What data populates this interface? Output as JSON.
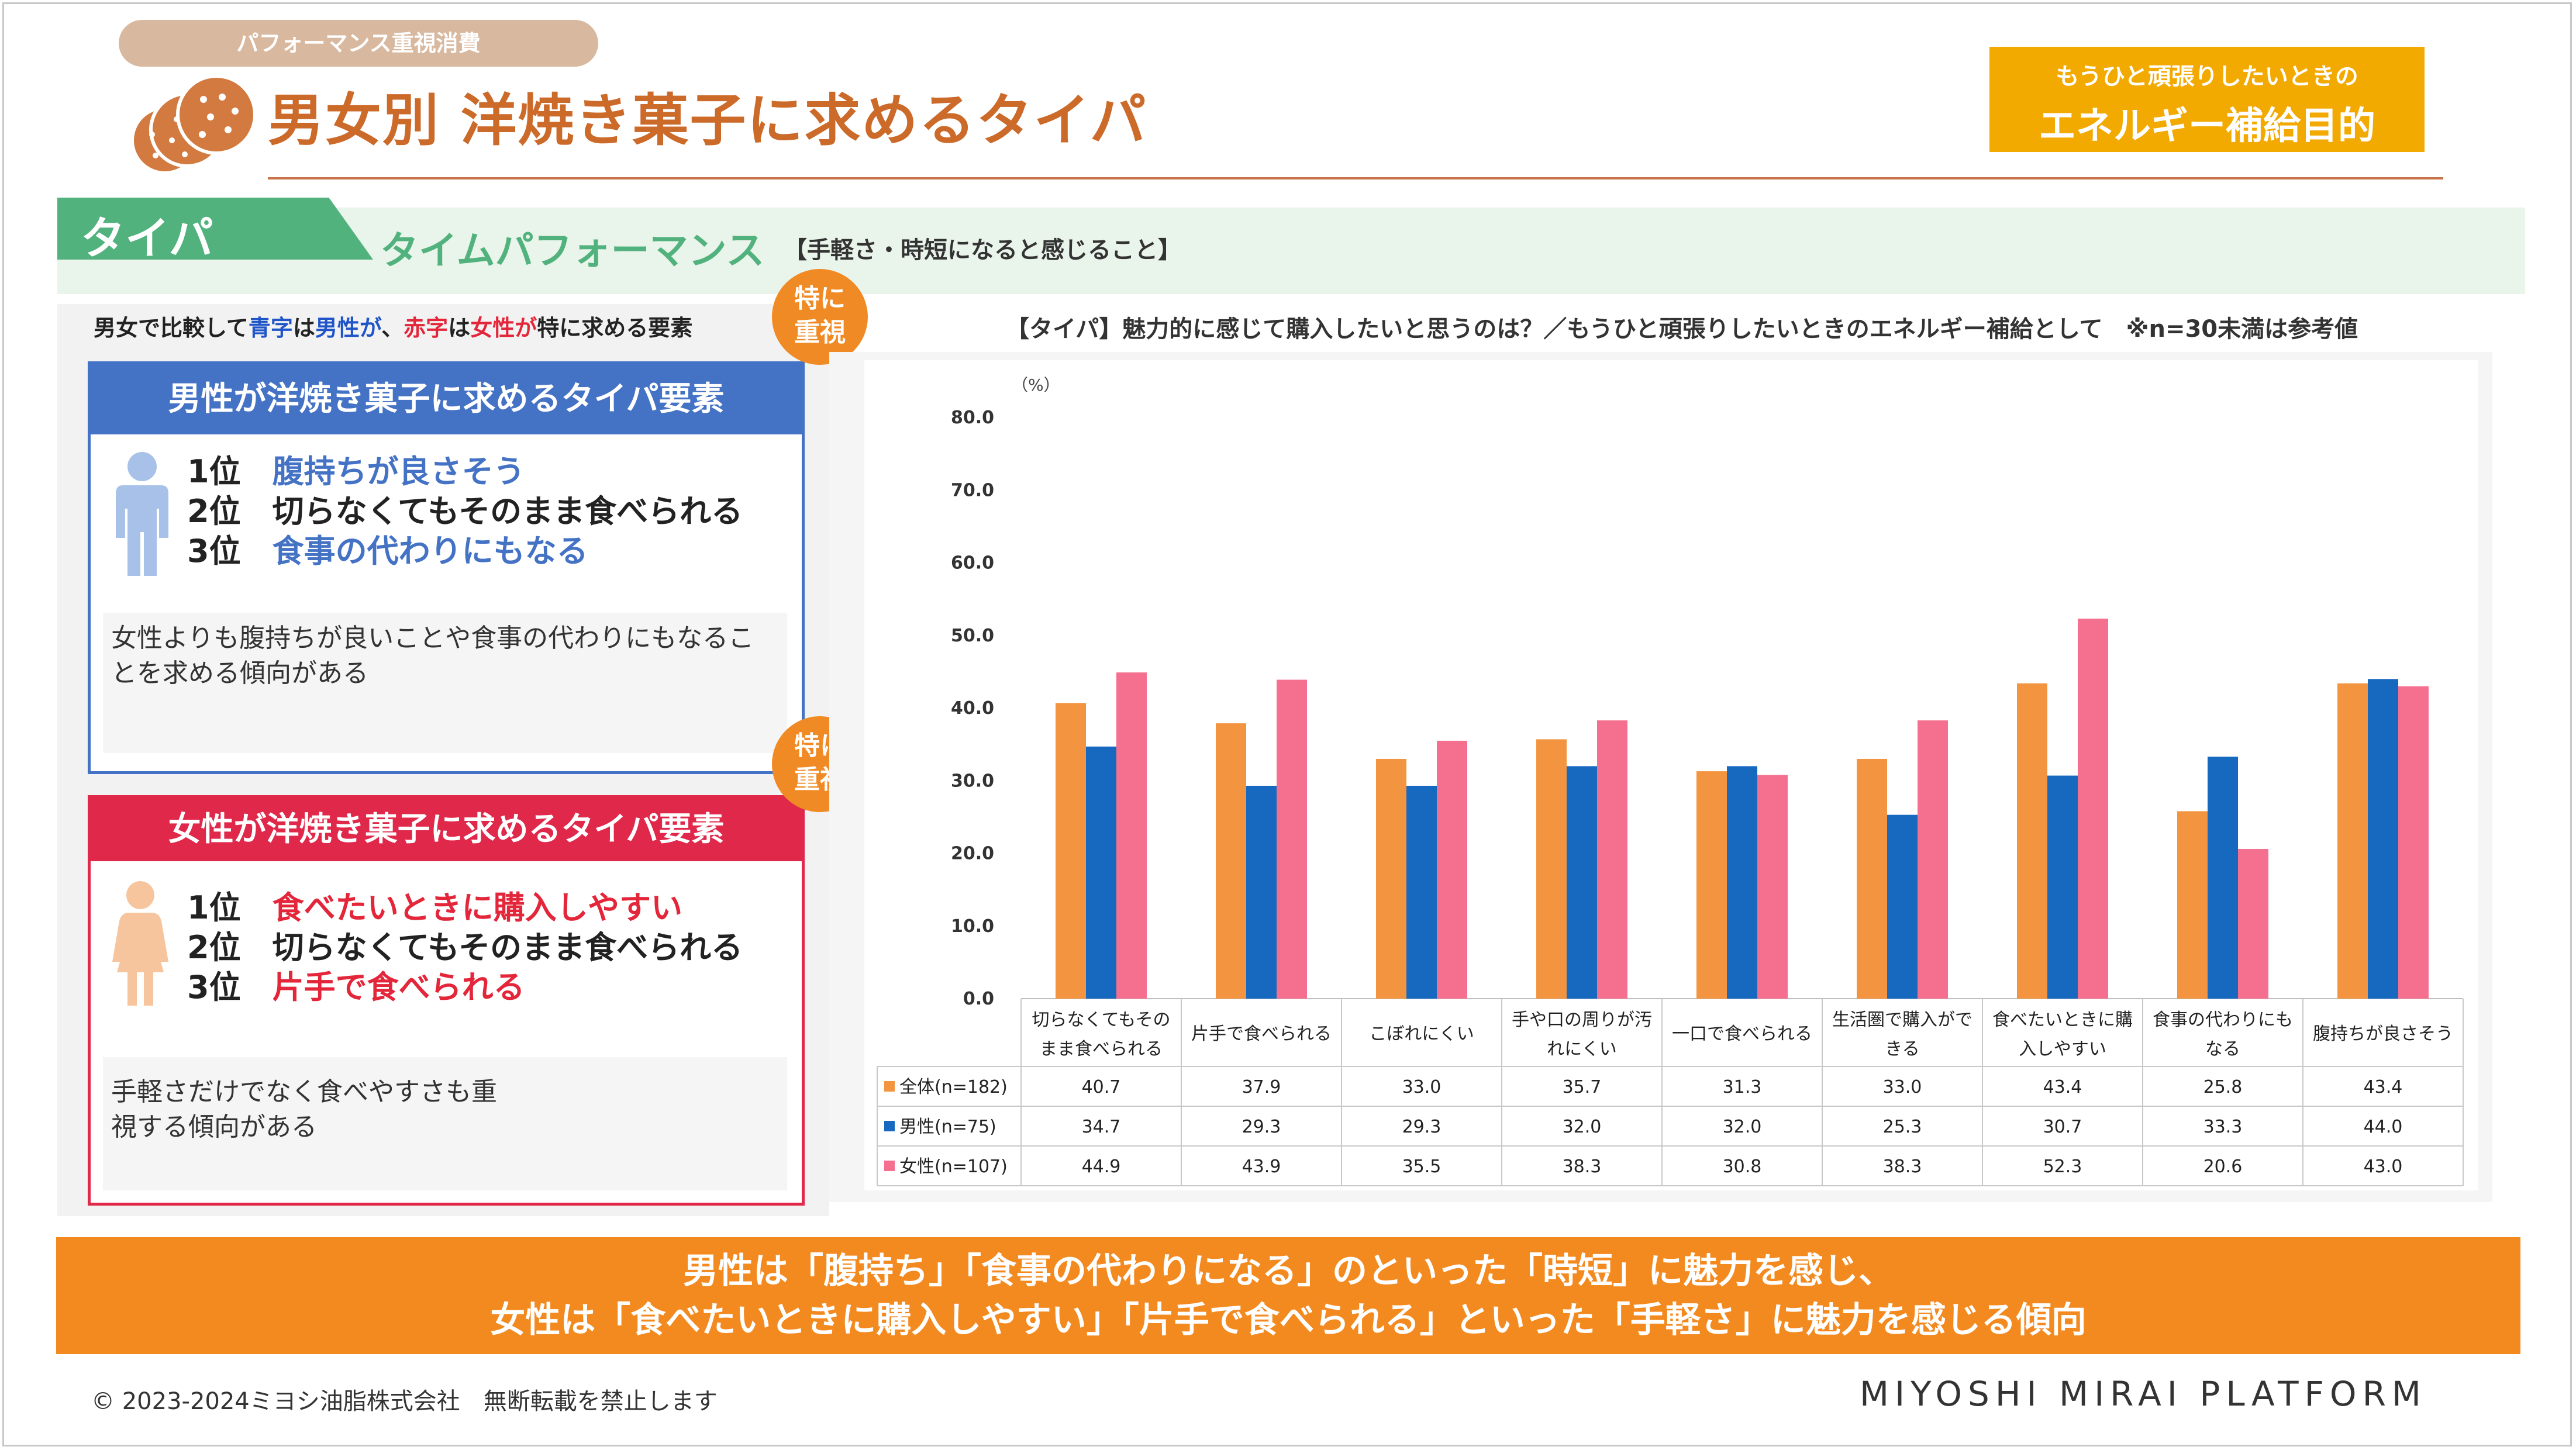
{
  "header": {
    "pill_label": "パフォーマンス重視消費",
    "title": "男女別 洋焼き菓子に求めるタイパ",
    "energy_line1": "もうひと頑張りしたいときの",
    "energy_line2": "エネルギー補給目的"
  },
  "band": {
    "tab_label": "タイパ",
    "main": "タイムパフォーマンス",
    "sub": "【手軽さ・時短になると感じること】"
  },
  "compare_note": {
    "p1": "男女で比較して",
    "blue_word": "青字",
    "p2": "は",
    "male_word": "男性が",
    "p3": "、",
    "red_word": "赤字",
    "p4": "は",
    "female_word": "女性が",
    "p5": "特に求める要素"
  },
  "bubble": {
    "line1": "特に",
    "line2": "重視"
  },
  "male_panel": {
    "heading": "男性が洋焼き菓子に求めるタイパ要素",
    "ranks": [
      {
        "rank": "1位",
        "text": "腹持ちが良さそう"
      },
      {
        "rank": "2位",
        "text": "切らなくてもそのまま食べられる"
      },
      {
        "rank": "3位",
        "text": "食事の代わりにもなる"
      }
    ],
    "note": "女性よりも腹持ちが良いことや食事の代わりにもなることを求める傾向がある"
  },
  "female_panel": {
    "heading": "女性が洋焼き菓子に求めるタイパ要素",
    "ranks": [
      {
        "rank": "1位",
        "text": "食べたいときに購入しやすい"
      },
      {
        "rank": "2位",
        "text": "切らなくてもそのまま食べられる"
      },
      {
        "rank": "3位",
        "text": "片手で食べられる"
      }
    ],
    "note_line1": "手軽さだけでなく食べやすさも重",
    "note_line2": "視する傾向がある"
  },
  "chart_caption": "【タイパ】魅力的に感じて購入したいと思うのは？／もうひと頑張りしたいときのエネルギー補給として　※n=30未満は参考値",
  "chart_data": {
    "type": "bar",
    "unit_label": "（%）",
    "ylim": [
      0,
      80
    ],
    "yticks": [
      "0.0",
      "10.0",
      "20.0",
      "30.0",
      "40.0",
      "50.0",
      "60.0",
      "70.0",
      "80.0"
    ],
    "categories": [
      [
        "切らなくてもその",
        "まま食べられる"
      ],
      [
        "片手で食べられる"
      ],
      [
        "こぼれにくい"
      ],
      [
        "手や口の周りが汚",
        "れにくい"
      ],
      [
        "一口で食べられる"
      ],
      [
        "生活圏で購入がで",
        "きる"
      ],
      [
        "食べたいときに購",
        "入しやすい"
      ],
      [
        "食事の代わりにも",
        "なる"
      ],
      [
        "腹持ちが良さそう"
      ]
    ],
    "series": [
      {
        "name": "全体(n=182)",
        "color": "#f39440",
        "values": [
          40.7,
          37.9,
          33.0,
          35.7,
          31.3,
          33.0,
          43.4,
          25.8,
          43.4
        ]
      },
      {
        "name": "男性(n=75)",
        "color": "#1769c0",
        "values": [
          34.7,
          29.3,
          29.3,
          32.0,
          32.0,
          25.3,
          30.7,
          33.3,
          44.0
        ]
      },
      {
        "name": "女性(n=107)",
        "color": "#f5708f",
        "values": [
          44.9,
          43.9,
          35.5,
          38.3,
          30.8,
          38.3,
          52.3,
          20.6,
          43.0
        ]
      }
    ],
    "table_values": [
      [
        "40.7",
        "37.9",
        "33.0",
        "35.7",
        "31.3",
        "33.0",
        "43.4",
        "25.8",
        "43.4"
      ],
      [
        "34.7",
        "29.3",
        "29.3",
        "32.0",
        "32.0",
        "25.3",
        "30.7",
        "33.3",
        "44.0"
      ],
      [
        "44.9",
        "43.9",
        "35.5",
        "38.3",
        "30.8",
        "38.3",
        "52.3",
        "20.6",
        "43.0"
      ]
    ],
    "grid": false,
    "legend": "data-table-left"
  },
  "footer": {
    "line1": "男性は「腹持ち」「食事の代わりになる」のといった「時短」に魅力を感じ、",
    "line2": "女性は「食べたいときに購入しやすい」「片手で食べられる」といった「手軽さ」に魅力を感じる傾向",
    "copyright": "© 2023-2024ミヨシ油脂株式会社　無断転載を禁止します",
    "brand": "MIYOSHI MIRAI PLATFORM"
  },
  "colors": {
    "male": "#4472c4",
    "female": "#e0284a",
    "accent_orange": "#f38a20",
    "green": "#52b27d"
  }
}
